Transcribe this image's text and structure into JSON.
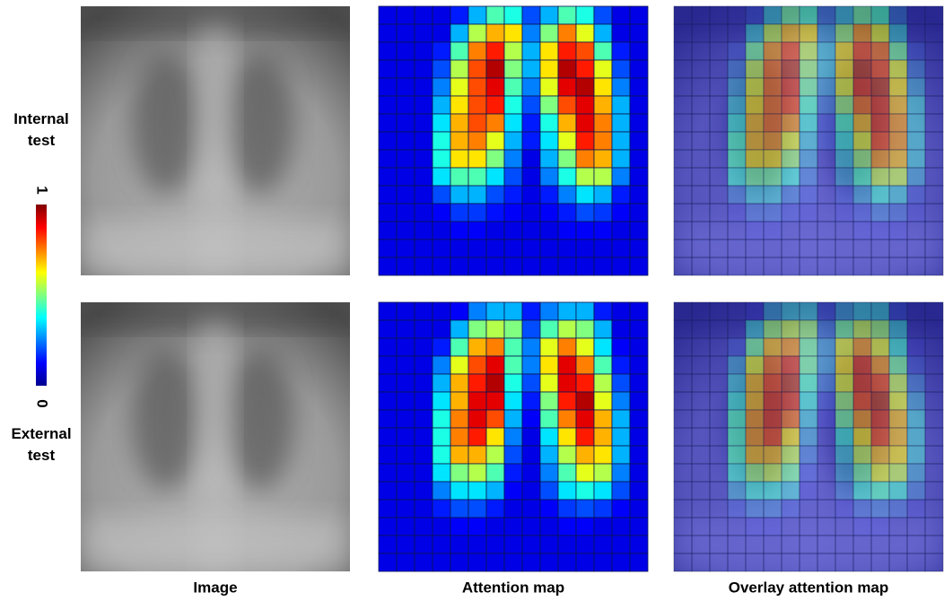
{
  "row_labels": [
    "Internal\ntest",
    "External\ntest"
  ],
  "column_labels": [
    "Image",
    "Attention map",
    "Overlay attention  map"
  ],
  "colorbar": {
    "max": 1,
    "min": 0
  },
  "panels": [
    {
      "attention": [
        [
          0.1,
          0.1,
          0.1,
          0.1,
          0.15,
          0.3,
          0.45,
          0.4,
          0.2,
          0.3,
          0.45,
          0.4,
          0.2,
          0.1,
          0.1
        ],
        [
          0.1,
          0.1,
          0.1,
          0.1,
          0.3,
          0.55,
          0.7,
          0.65,
          0.25,
          0.5,
          0.75,
          0.6,
          0.3,
          0.1,
          0.1
        ],
        [
          0.1,
          0.1,
          0.1,
          0.15,
          0.45,
          0.75,
          0.85,
          0.55,
          0.3,
          0.65,
          0.85,
          0.8,
          0.45,
          0.15,
          0.1
        ],
        [
          0.1,
          0.1,
          0.1,
          0.2,
          0.55,
          0.8,
          0.95,
          0.5,
          0.3,
          0.65,
          0.95,
          0.85,
          0.6,
          0.2,
          0.1
        ],
        [
          0.1,
          0.1,
          0.1,
          0.25,
          0.6,
          0.8,
          0.9,
          0.45,
          0.25,
          0.6,
          0.9,
          0.95,
          0.65,
          0.25,
          0.1
        ],
        [
          0.1,
          0.1,
          0.1,
          0.3,
          0.65,
          0.8,
          0.85,
          0.4,
          0.2,
          0.5,
          0.8,
          0.9,
          0.7,
          0.3,
          0.1
        ],
        [
          0.1,
          0.1,
          0.1,
          0.35,
          0.7,
          0.8,
          0.75,
          0.35,
          0.15,
          0.4,
          0.7,
          0.9,
          0.75,
          0.3,
          0.1
        ],
        [
          0.1,
          0.1,
          0.1,
          0.4,
          0.7,
          0.75,
          0.6,
          0.3,
          0.15,
          0.35,
          0.6,
          0.85,
          0.75,
          0.3,
          0.1
        ],
        [
          0.1,
          0.1,
          0.1,
          0.4,
          0.65,
          0.65,
          0.5,
          0.25,
          0.1,
          0.3,
          0.5,
          0.75,
          0.7,
          0.3,
          0.1
        ],
        [
          0.1,
          0.1,
          0.1,
          0.35,
          0.45,
          0.45,
          0.35,
          0.2,
          0.1,
          0.25,
          0.4,
          0.55,
          0.55,
          0.25,
          0.1
        ],
        [
          0.1,
          0.1,
          0.1,
          0.2,
          0.3,
          0.3,
          0.2,
          0.15,
          0.1,
          0.15,
          0.25,
          0.35,
          0.3,
          0.15,
          0.1
        ],
        [
          0.1,
          0.1,
          0.1,
          0.12,
          0.18,
          0.18,
          0.14,
          0.12,
          0.1,
          0.12,
          0.15,
          0.2,
          0.18,
          0.12,
          0.1
        ],
        [
          0.1,
          0.1,
          0.1,
          0.1,
          0.12,
          0.12,
          0.1,
          0.1,
          0.1,
          0.1,
          0.12,
          0.12,
          0.12,
          0.1,
          0.1
        ],
        [
          0.1,
          0.1,
          0.1,
          0.1,
          0.1,
          0.1,
          0.1,
          0.1,
          0.1,
          0.1,
          0.1,
          0.1,
          0.1,
          0.1,
          0.1
        ],
        [
          0.1,
          0.1,
          0.1,
          0.1,
          0.1,
          0.1,
          0.1,
          0.1,
          0.1,
          0.1,
          0.1,
          0.1,
          0.1,
          0.1,
          0.1
        ]
      ]
    },
    {
      "attention": [
        [
          0.1,
          0.1,
          0.1,
          0.1,
          0.12,
          0.25,
          0.3,
          0.3,
          0.15,
          0.25,
          0.3,
          0.3,
          0.15,
          0.1,
          0.1
        ],
        [
          0.1,
          0.1,
          0.1,
          0.1,
          0.3,
          0.5,
          0.55,
          0.5,
          0.2,
          0.45,
          0.55,
          0.5,
          0.3,
          0.1,
          0.1
        ],
        [
          0.1,
          0.1,
          0.1,
          0.15,
          0.45,
          0.7,
          0.75,
          0.45,
          0.25,
          0.6,
          0.75,
          0.6,
          0.35,
          0.12,
          0.1
        ],
        [
          0.1,
          0.1,
          0.1,
          0.25,
          0.6,
          0.8,
          0.9,
          0.45,
          0.25,
          0.65,
          0.9,
          0.75,
          0.45,
          0.15,
          0.1
        ],
        [
          0.1,
          0.1,
          0.1,
          0.3,
          0.7,
          0.85,
          0.95,
          0.4,
          0.2,
          0.6,
          0.9,
          0.85,
          0.55,
          0.2,
          0.1
        ],
        [
          0.1,
          0.1,
          0.1,
          0.35,
          0.7,
          0.9,
          0.9,
          0.35,
          0.15,
          0.5,
          0.85,
          0.95,
          0.6,
          0.25,
          0.1
        ],
        [
          0.1,
          0.1,
          0.1,
          0.4,
          0.75,
          0.9,
          0.8,
          0.3,
          0.12,
          0.45,
          0.75,
          0.9,
          0.7,
          0.3,
          0.1
        ],
        [
          0.1,
          0.1,
          0.1,
          0.4,
          0.75,
          0.85,
          0.65,
          0.25,
          0.1,
          0.35,
          0.65,
          0.85,
          0.7,
          0.3,
          0.1
        ],
        [
          0.1,
          0.1,
          0.1,
          0.4,
          0.7,
          0.7,
          0.55,
          0.2,
          0.1,
          0.3,
          0.55,
          0.7,
          0.65,
          0.3,
          0.1
        ],
        [
          0.1,
          0.1,
          0.1,
          0.35,
          0.5,
          0.55,
          0.45,
          0.15,
          0.1,
          0.25,
          0.45,
          0.6,
          0.55,
          0.25,
          0.1
        ],
        [
          0.1,
          0.1,
          0.1,
          0.25,
          0.35,
          0.35,
          0.3,
          0.12,
          0.1,
          0.2,
          0.35,
          0.4,
          0.35,
          0.2,
          0.1
        ],
        [
          0.1,
          0.1,
          0.1,
          0.15,
          0.2,
          0.2,
          0.15,
          0.1,
          0.1,
          0.12,
          0.18,
          0.2,
          0.18,
          0.12,
          0.1
        ],
        [
          0.1,
          0.1,
          0.1,
          0.1,
          0.12,
          0.12,
          0.1,
          0.1,
          0.1,
          0.1,
          0.12,
          0.12,
          0.1,
          0.1,
          0.1
        ],
        [
          0.1,
          0.1,
          0.1,
          0.1,
          0.1,
          0.1,
          0.1,
          0.1,
          0.1,
          0.1,
          0.1,
          0.1,
          0.1,
          0.1,
          0.1
        ],
        [
          0.1,
          0.1,
          0.1,
          0.1,
          0.1,
          0.1,
          0.1,
          0.1,
          0.1,
          0.1,
          0.1,
          0.1,
          0.1,
          0.1,
          0.1
        ]
      ]
    }
  ]
}
